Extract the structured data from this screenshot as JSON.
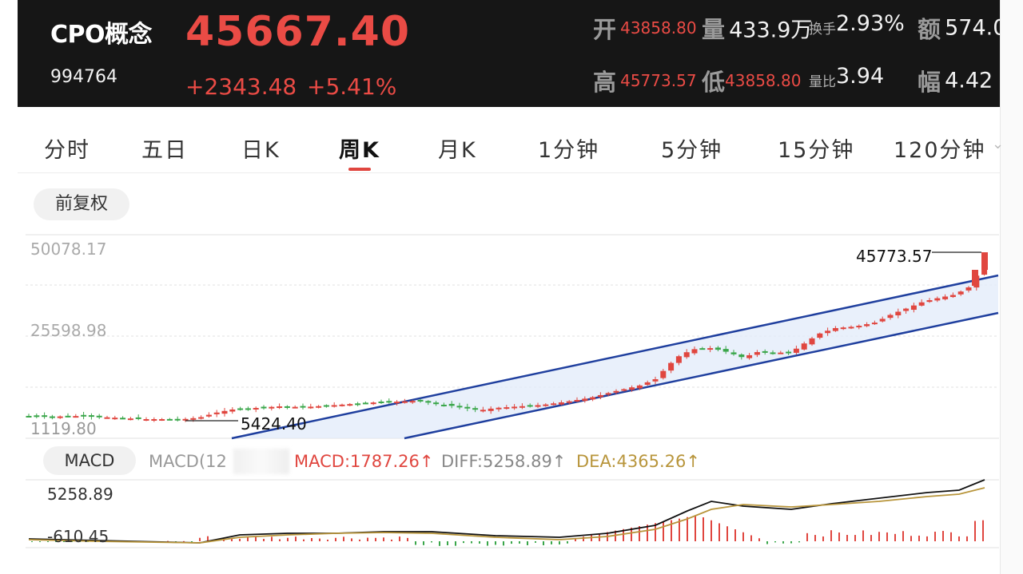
{
  "header": {
    "name": "CPO概念",
    "code": "994764",
    "price": "45667.40",
    "change": "+2343.48",
    "change_pct": "+5.41%",
    "stats": {
      "open_label": "开",
      "open_value": "43858.80",
      "volume_label": "量",
      "volume_value": "433.9万",
      "turnover_label": "换手",
      "turnover_value": "2.93%",
      "amount_label": "额",
      "amount_value": "574.0",
      "high_label": "高",
      "high_value": "45773.57",
      "low_label": "低",
      "low_value": "43858.80",
      "vol_ratio_label": "量比",
      "vol_ratio_value": "3.94",
      "amplitude_label": "幅",
      "amplitude_value": "4.42"
    }
  },
  "tabs": [
    "分时",
    "五日",
    "日K",
    "周K",
    "月K",
    "1分钟",
    "5分钟",
    "15分钟",
    "120分钟"
  ],
  "active_tab": "周K",
  "adjust_button": "前复权",
  "chart": {
    "y_labels": [
      "50078.17",
      "25598.98",
      "1119.80"
    ],
    "high_annotation": "45773.57",
    "low_annotation": "5424.40"
  },
  "macd": {
    "button": "MACD",
    "params_label": "MACD(12",
    "macd_label": "MACD:1787.26↑",
    "diff_label": "DIFF:5258.89↑",
    "dea_label": "DEA:4365.26↑",
    "y_top": "5258.89",
    "y_bottom": "-610.45"
  },
  "colors": {
    "up": "#e0463f",
    "down": "#3aa64a",
    "channel": "#1f3f9e",
    "dea": "#b8953b",
    "header_bg": "#161616"
  }
}
